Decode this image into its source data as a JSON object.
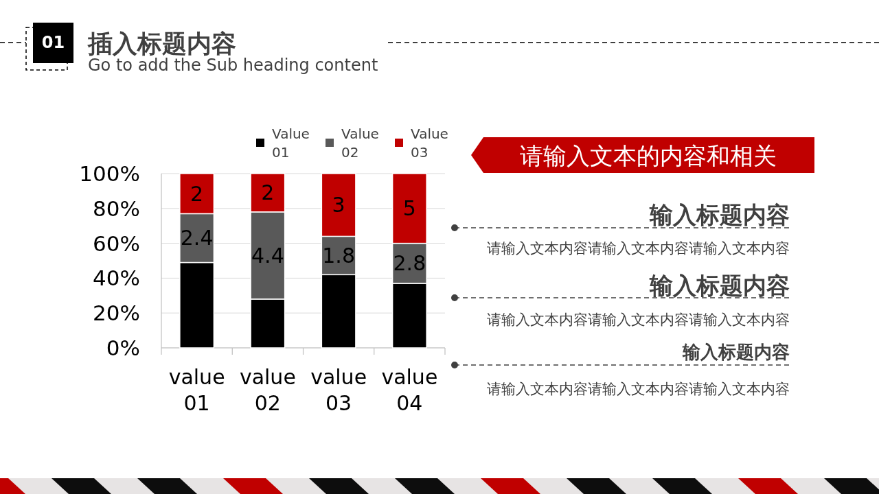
{
  "chart_data": [
    {
      "type": "bar",
      "title": "插入标题内容",
      "subtitle": "Go to add the Sub heading content",
      "annotations": [
        "01",
        {
          "text": "2.4",
          "x": "value 01",
          "y": 77
        },
        {
          "text": "4.4",
          "x": "value 02",
          "y": 78
        },
        {
          "text": "1.8",
          "x": "value 03",
          "y": 64
        },
        {
          "text": "2.8",
          "x": "value 04",
          "y": 60
        },
        {
          "text": "2",
          "x": "value 01",
          "y": 100
        },
        {
          "text": "2",
          "x": "value 02",
          "y": 100
        },
        {
          "text": "3",
          "x": "value 03",
          "y": 100
        },
        {
          "text": "5",
          "x": "value 04",
          "y": 100
        }
      ],
      "categories": [
        "value 01",
        "value 02",
        "value 03",
        "value 04"
      ],
      "stacked": true,
      "series": [
        {
          "name": "Value 01",
          "color": "#000000",
          "values": [
            49,
            28,
            42,
            37
          ]
        },
        {
          "name": "Value 02",
          "color": "#595959",
          "values": [
            28,
            50,
            22,
            23
          ]
        },
        {
          "name": "Value 03",
          "color": "#c00000",
          "values": [
            23,
            22,
            36,
            40
          ]
        }
      ],
      "ylim": [
        0,
        100
      ],
      "yticks": [
        {
          "value": 0,
          "label": "0%"
        },
        {
          "value": 20,
          "label": "20%"
        },
        {
          "value": 40,
          "label": "40%"
        },
        {
          "value": 60,
          "label": "60%"
        },
        {
          "value": 80,
          "label": "80%"
        },
        {
          "value": 100,
          "label": "100%"
        }
      ],
      "grid": "y",
      "legend": "top"
    },
    {
      "type": "other",
      "title": "请输入文本的内容和相关",
      "annotations": [
        "输入标题内容",
        "请输入文本内容请输入文本内容请输入文本内容",
        "输入标题内容",
        "请输入文本内容请输入文本内容请输入文本内容",
        "输入标题内容",
        "请输入文本内容请输入文本内容请输入文本内容"
      ]
    }
  ]
}
